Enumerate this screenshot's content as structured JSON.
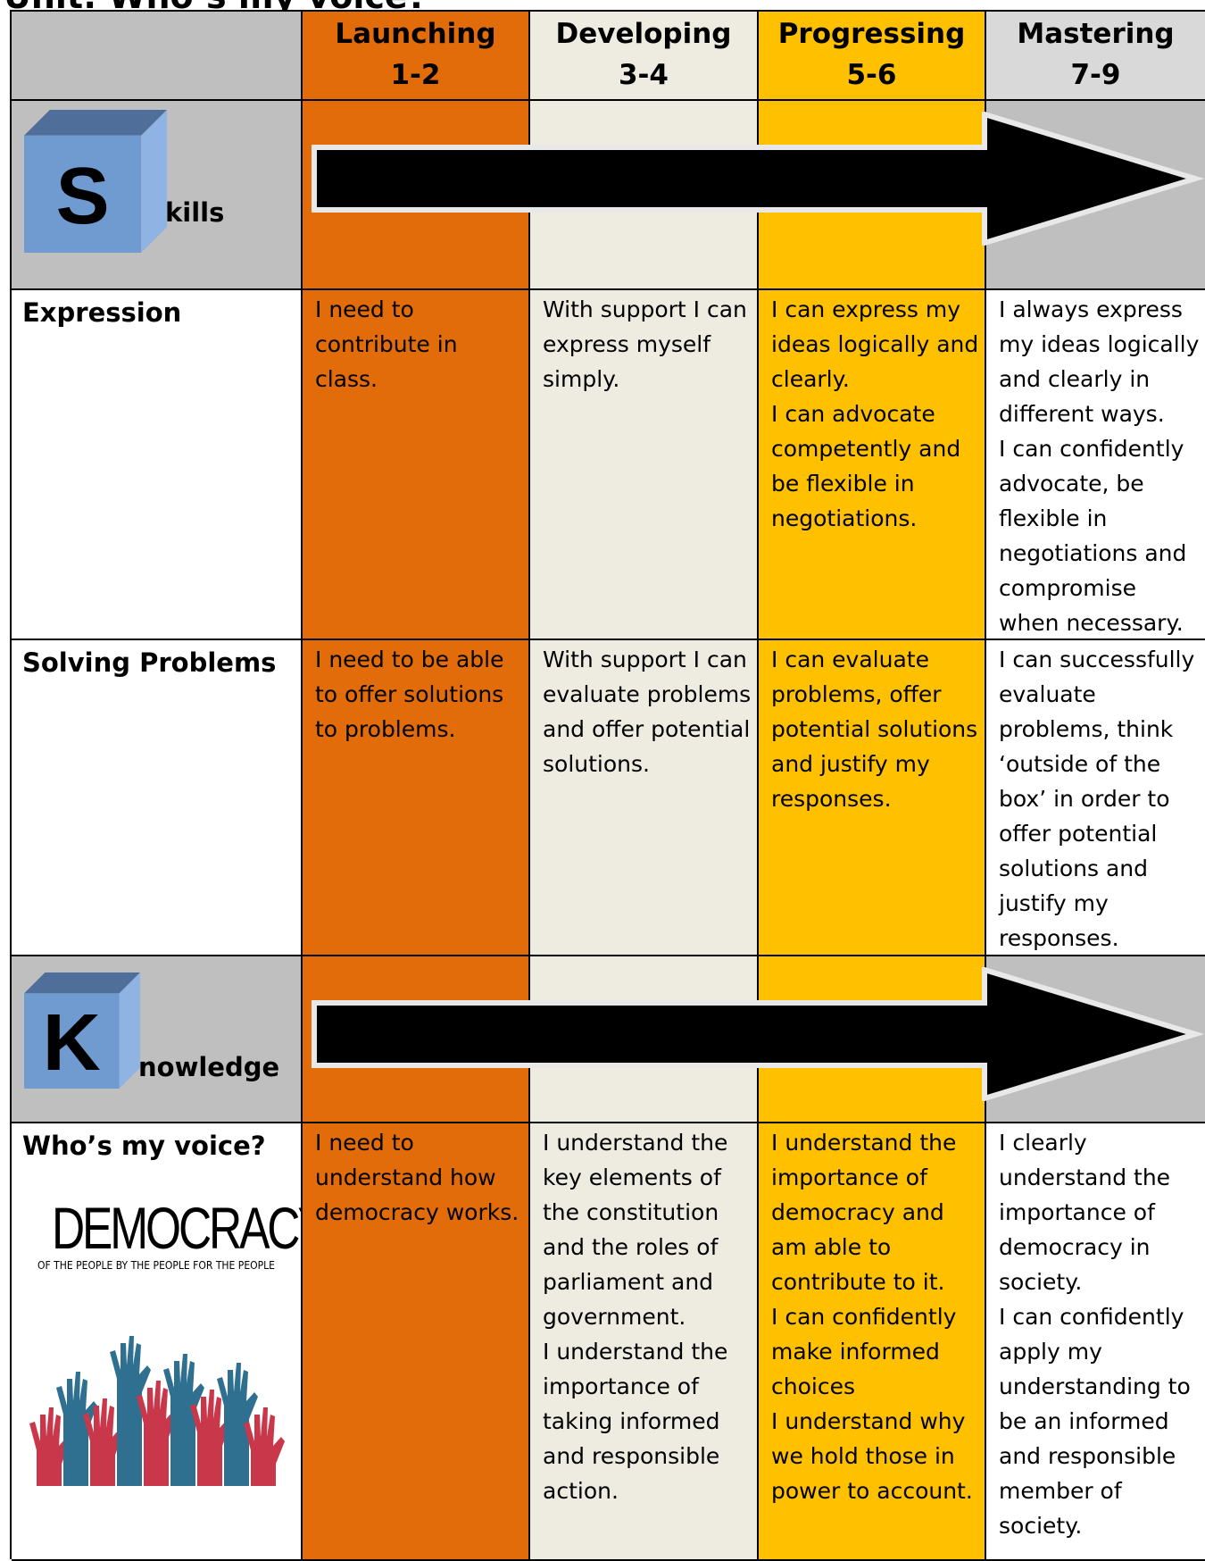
{
  "title": "Unit: Who’s my voice?",
  "header": [
    {
      "label": "Launching",
      "range": "1-2"
    },
    {
      "label": "Developing",
      "range": "3-4"
    },
    {
      "label": "Progressing",
      "range": "5-6"
    },
    {
      "label": "Mastering",
      "range": "7-9"
    }
  ],
  "skills_section": {
    "letter": "S",
    "rest": "kills"
  },
  "skills": [
    {
      "label": "Expression",
      "cells": [
        [
          "I need to contribute in class."
        ],
        [
          "With support I can express myself simply."
        ],
        [
          "I can express my ideas logically and clearly.",
          "I can advocate competently and be flexible in negotiations."
        ],
        [
          "I always express my ideas logically and clearly in different ways.",
          "I can confidently advocate, be flexible in negotiations and compromise when necessary."
        ]
      ]
    },
    {
      "label": "Solving Problems",
      "cells": [
        [
          "I need to be able to offer solutions to problems."
        ],
        [
          "With support I can evaluate problems and offer potential solutions."
        ],
        [
          "I can evaluate problems, offer potential solutions and justify my responses."
        ],
        [
          "I can successfully evaluate problems, think ‘outside of the box’ in order to offer potential solutions and justify my responses."
        ]
      ]
    }
  ],
  "knowledge_section": {
    "letter": "K",
    "rest": "nowledge"
  },
  "knowledge": [
    {
      "label": "Who’s my voice?",
      "image_title": "DEMOCRACY",
      "image_caption": "OF THE PEOPLE BY THE PEOPLE FOR THE PEOPLE",
      "cells": [
        [
          "I need to understand how democracy works."
        ],
        [
          "I understand the key elements of the constitution and the roles of parliament and government.",
          "I understand the importance of taking informed and responsible action."
        ],
        [
          "I understand the importance of democracy and am able to contribute to it.",
          "I can confidently make informed choices",
          "I understand why we hold those in power to account."
        ],
        [
          "I clearly understand the importance of democracy in society.",
          "I can confidently apply my understanding to be an informed and responsible member of society."
        ]
      ]
    }
  ]
}
